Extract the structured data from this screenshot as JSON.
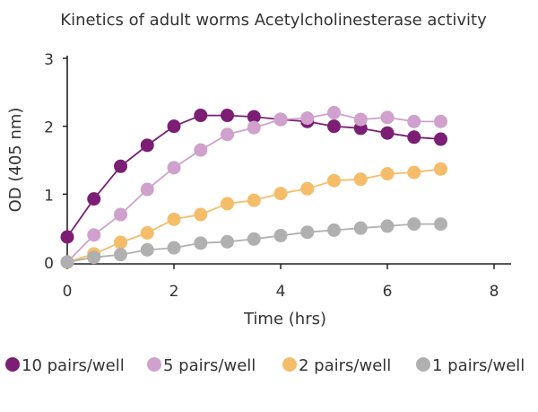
{
  "chart_data": {
    "type": "line",
    "title": "Kinetics of adult worms Acetylcholinesterase activity",
    "xlabel": "Time (hrs)",
    "ylabel": "OD (405 nm)",
    "xlim": [
      0,
      8
    ],
    "ylim": [
      0,
      3
    ],
    "xticks": [
      0,
      2,
      4,
      6,
      8
    ],
    "yticks": [
      0,
      1,
      2,
      3
    ],
    "grid": false,
    "legend_position": "bottom",
    "series": [
      {
        "name": "10 pairs/well",
        "color": "#7b1e74",
        "x": [
          0,
          0.5,
          1,
          1.5,
          2,
          2.5,
          3,
          3.5,
          4,
          4.5,
          5,
          5.5,
          6,
          6.5,
          7
        ],
        "y": [
          0.37,
          0.93,
          1.41,
          1.72,
          2.0,
          2.16,
          2.16,
          2.14,
          2.1,
          2.07,
          2.0,
          1.97,
          1.9,
          1.84,
          1.81
        ]
      },
      {
        "name": "5 pairs/well",
        "color": "#cfa1cc",
        "x": [
          0,
          0.5,
          1,
          1.5,
          2,
          2.5,
          3,
          3.5,
          4,
          4.5,
          5,
          5.5,
          6,
          6.5,
          7
        ],
        "y": [
          0.0,
          0.4,
          0.7,
          1.07,
          1.39,
          1.65,
          1.88,
          1.98,
          2.1,
          2.12,
          2.2,
          2.1,
          2.13,
          2.07,
          2.07
        ]
      },
      {
        "name": "2 pairs/well",
        "color": "#f5bd6a",
        "x": [
          0,
          0.5,
          1,
          1.5,
          2,
          2.5,
          3,
          3.5,
          4,
          4.5,
          5,
          5.5,
          6,
          6.5,
          7
        ],
        "y": [
          0.0,
          0.12,
          0.29,
          0.43,
          0.63,
          0.7,
          0.86,
          0.91,
          1.01,
          1.08,
          1.2,
          1.22,
          1.3,
          1.32,
          1.37
        ]
      },
      {
        "name": "1 pairs/well",
        "color": "#b0b0b0",
        "x": [
          0,
          0.5,
          1,
          1.5,
          2,
          2.5,
          3,
          3.5,
          4,
          4.5,
          5,
          5.5,
          6,
          6.5,
          7
        ],
        "y": [
          0.0,
          0.07,
          0.11,
          0.18,
          0.21,
          0.28,
          0.3,
          0.34,
          0.39,
          0.44,
          0.47,
          0.5,
          0.53,
          0.56,
          0.56
        ]
      }
    ]
  }
}
